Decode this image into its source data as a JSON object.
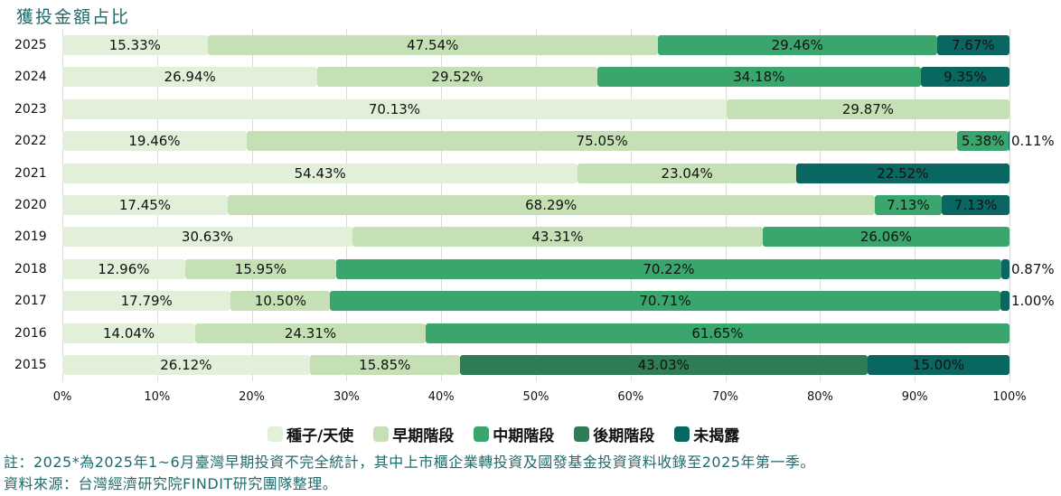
{
  "chart_data": {
    "type": "bar",
    "orientation": "horizontal-stacked-100",
    "title": "獲投金額占比",
    "categories": [
      "2025",
      "2024",
      "2023",
      "2022",
      "2021",
      "2020",
      "2019",
      "2018",
      "2017",
      "2016",
      "2015"
    ],
    "series": [
      {
        "name": "種子/天使",
        "color": "#e2efd9",
        "values": [
          15.33,
          26.94,
          70.13,
          19.46,
          54.43,
          17.45,
          30.63,
          12.96,
          17.79,
          14.04,
          26.12
        ]
      },
      {
        "name": "早期階段",
        "color": "#c5e0b4",
        "values": [
          47.54,
          29.52,
          29.87,
          75.05,
          23.04,
          68.29,
          43.31,
          15.95,
          10.5,
          24.31,
          15.85
        ]
      },
      {
        "name": "中期階段",
        "color": "#3aa66e",
        "values": [
          29.46,
          34.18,
          0,
          5.38,
          0,
          7.13,
          26.06,
          70.22,
          70.71,
          61.65,
          0
        ]
      },
      {
        "name": "後期階段",
        "color": "#2e7d55",
        "values": [
          0,
          0,
          0,
          0,
          0,
          0,
          0,
          0,
          0,
          0,
          43.03
        ]
      },
      {
        "name": "未揭露",
        "color": "#0a6660",
        "values": [
          7.67,
          9.35,
          0,
          0.11,
          22.52,
          7.13,
          0,
          0.87,
          1.0,
          0,
          15.0
        ]
      }
    ],
    "xlim": [
      0,
      100
    ],
    "xticks": [
      "0%",
      "10%",
      "20%",
      "30%",
      "40%",
      "50%",
      "60%",
      "70%",
      "80%",
      "90%",
      "100%"
    ],
    "grid": true,
    "legend": "bottom"
  },
  "notes": {
    "line1": "註：2025*為2025年1~6月臺灣早期投資不完全統計，其中上市櫃企業轉投資及國發基金投資資料收錄至2025年第一季。",
    "line2": "資料來源：台灣經濟研究院FINDIT研究團隊整理。"
  }
}
